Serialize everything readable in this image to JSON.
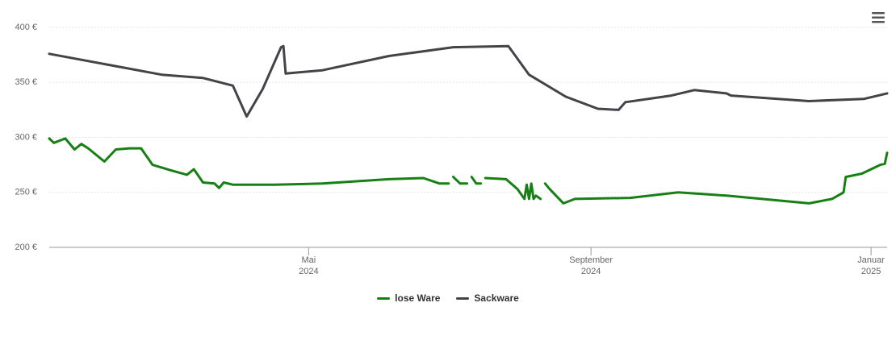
{
  "chart_data": {
    "type": "line",
    "xlim": [
      "2024-01-09",
      "2025-01-08"
    ],
    "xticks": [
      {
        "value": "2024-05-01",
        "label": "Mai 2024"
      },
      {
        "value": "2024-09-01",
        "label": "September 2024"
      },
      {
        "value": "2025-01-01",
        "label": "Januar 2025"
      }
    ],
    "ylim": [
      200,
      400
    ],
    "yticks": [
      {
        "value": 200,
        "label": "200 €"
      },
      {
        "value": 250,
        "label": "250 €"
      },
      {
        "value": 300,
        "label": "300 €"
      },
      {
        "value": 350,
        "label": "350 €"
      },
      {
        "value": 400,
        "label": "400 €"
      }
    ],
    "grid": true,
    "legend": "bottom",
    "series": [
      {
        "name": "lose Ware",
        "color": "#168014",
        "x": [
          "2024-01-09",
          "2024-01-11",
          "2024-01-16",
          "2024-01-20",
          "2024-01-23",
          "2024-01-26",
          "2024-02-02",
          "2024-02-07",
          "2024-02-13",
          "2024-02-18",
          "2024-02-23",
          "2024-03-02",
          "2024-03-09",
          "2024-03-12",
          "2024-03-16",
          "2024-03-21",
          "2024-03-23",
          "2024-03-25",
          "2024-03-29",
          "2024-04-16",
          "2024-05-07",
          "2024-06-05",
          "2024-06-20",
          "2024-06-27",
          "2024-07-01",
          "2024-07-02",
          "2024-07-03",
          "2024-07-06",
          "2024-07-09",
          "2024-07-10",
          "2024-07-11",
          "2024-07-13",
          "2024-07-15",
          "2024-07-16",
          "2024-07-17",
          "2024-07-26",
          "2024-07-31",
          "2024-08-03",
          "2024-08-04",
          "2024-08-05",
          "2024-08-06",
          "2024-08-07",
          "2024-08-08",
          "2024-08-10",
          "2024-08-11",
          "2024-08-12",
          "2024-08-14",
          "2024-08-20",
          "2024-08-25",
          "2024-09-18",
          "2024-10-09",
          "2024-10-30",
          "2024-12-05",
          "2024-12-15",
          "2024-12-20",
          "2024-12-21",
          "2024-12-28",
          "2025-01-05",
          "2025-01-07",
          "2025-01-08"
        ],
        "values": [
          299,
          295,
          299,
          289,
          294,
          290,
          278,
          289,
          290,
          290,
          275,
          270,
          266,
          271,
          259,
          258,
          254,
          259,
          257,
          257,
          258,
          262,
          263,
          258,
          258,
          null,
          264,
          258,
          258,
          null,
          264,
          258,
          258,
          null,
          263,
          262,
          253,
          244,
          257,
          244,
          258,
          244,
          247,
          244,
          null,
          258,
          253,
          240,
          244,
          245,
          250,
          247,
          240,
          244,
          250,
          264,
          267,
          275,
          276,
          286
        ]
      },
      {
        "name": "Sackware",
        "color": "#434348",
        "x": [
          "2024-01-09",
          "2024-02-27",
          "2024-03-16",
          "2024-03-29",
          "2024-04-04",
          "2024-04-11",
          "2024-04-19",
          "2024-04-20",
          "2024-04-21",
          "2024-05-07",
          "2024-06-05",
          "2024-07-03",
          "2024-07-27",
          "2024-08-05",
          "2024-08-21",
          "2024-09-04",
          "2024-09-13",
          "2024-09-16",
          "2024-10-06",
          "2024-10-16",
          "2024-10-30",
          "2024-11-01",
          "2024-12-05",
          "2024-12-29",
          "2025-01-08"
        ],
        "values": [
          376,
          357,
          354,
          347,
          319,
          344,
          382,
          383,
          358,
          361,
          374,
          382,
          383,
          357,
          337,
          326,
          325,
          332,
          338,
          343,
          340,
          338,
          333,
          335,
          340
        ]
      }
    ]
  }
}
